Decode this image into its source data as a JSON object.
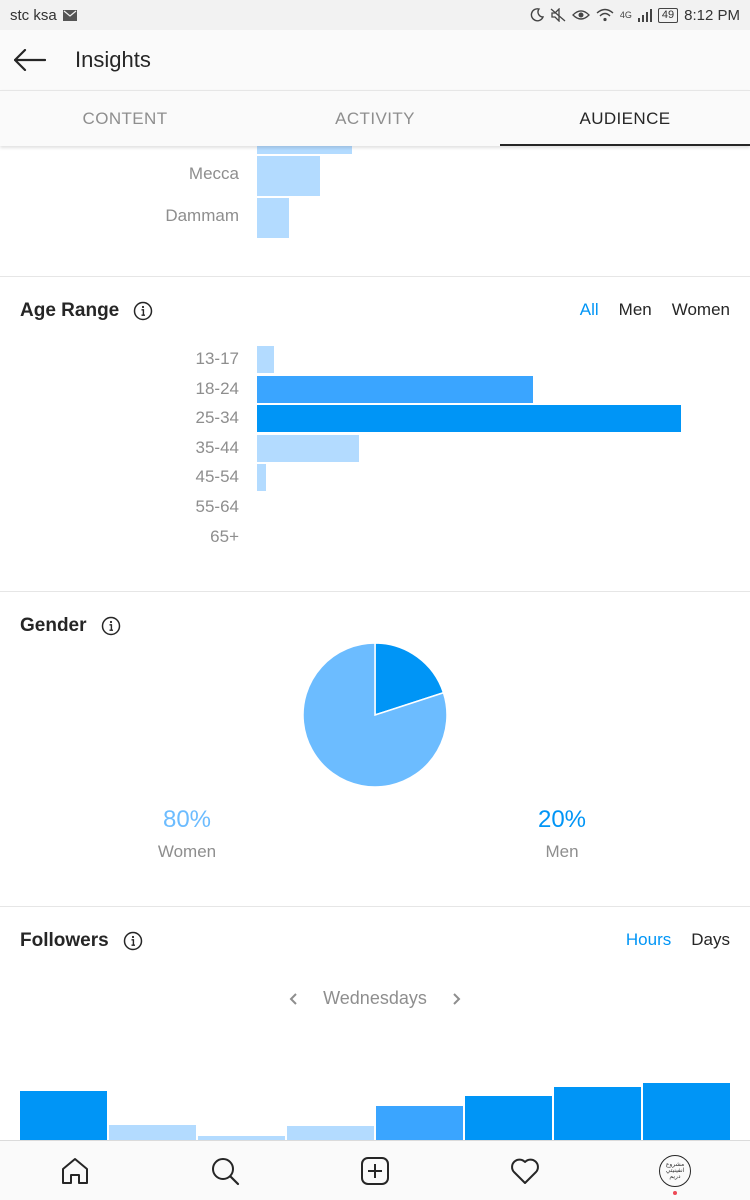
{
  "status_bar": {
    "carrier": "stc ksa",
    "time": "8:12 PM",
    "network": "4G",
    "battery": "49"
  },
  "header": {
    "title": "Insights"
  },
  "tabs": [
    {
      "label": "CONTENT",
      "active": false
    },
    {
      "label": "ACTIVITY",
      "active": false
    },
    {
      "label": "AUDIENCE",
      "active": true
    }
  ],
  "top_locations": {
    "items": [
      {
        "label": "",
        "value": 0.22
      },
      {
        "label": "Mecca",
        "value": 0.15
      },
      {
        "label": "Dammam",
        "value": 0.075
      }
    ]
  },
  "age_range": {
    "title": "Age Range",
    "filters": [
      {
        "label": "All",
        "active": true
      },
      {
        "label": "Men",
        "active": false
      },
      {
        "label": "Women",
        "active": false
      }
    ]
  },
  "gender": {
    "title": "Gender",
    "women": {
      "percent": "80%",
      "label": "Women",
      "value": 80,
      "color": "#6cbcff"
    },
    "men": {
      "percent": "20%",
      "label": "Men",
      "value": 20,
      "color": "#0095f6"
    }
  },
  "followers": {
    "title": "Followers",
    "filters": [
      {
        "label": "Hours",
        "active": true
      },
      {
        "label": "Days",
        "active": false
      }
    ],
    "day": "Wednesdays"
  },
  "chart_data": [
    {
      "type": "bar",
      "orientation": "horizontal",
      "title": "Age Range",
      "categories": [
        "13-17",
        "18-24",
        "25-34",
        "35-44",
        "45-54",
        "55-64",
        "65+"
      ],
      "values": [
        4,
        65,
        100,
        24,
        2,
        0,
        0
      ],
      "highlight_colors": [
        "#b3dbff",
        "#3aa5ff",
        "#0095f6",
        "#b3dbff",
        "#b3dbff",
        "#b3dbff",
        "#b3dbff"
      ]
    },
    {
      "type": "bar",
      "title": "Followers",
      "categories": [
        "",
        "",
        "",
        "",
        "",
        "",
        "",
        ""
      ],
      "values": [
        49,
        15,
        4,
        14,
        34,
        44,
        53,
        57
      ],
      "colors": [
        "#0095f6",
        "#b3dbff",
        "#b3dbff",
        "#b3dbff",
        "#3aa5ff",
        "#0095f6",
        "#0095f6",
        "#0095f6"
      ]
    },
    {
      "type": "pie",
      "title": "Gender",
      "categories": [
        "Women",
        "Men"
      ],
      "values": [
        80,
        20
      ],
      "colors": [
        "#6cbcff",
        "#0095f6"
      ]
    }
  ],
  "bottom_nav": {
    "avatar_text": "مشروع انفينيتي دريم"
  }
}
